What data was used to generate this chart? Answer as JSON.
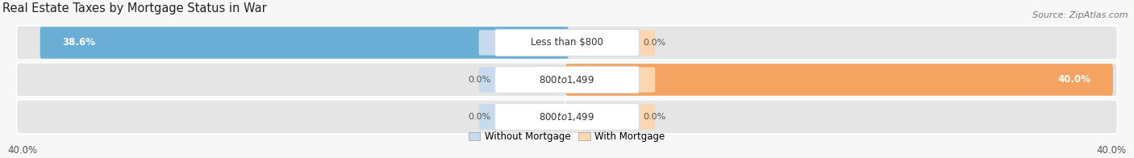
{
  "title": "Real Estate Taxes by Mortgage Status in War",
  "source": "Source: ZipAtlas.com",
  "rows": [
    {
      "label": "Less than $800",
      "without_mortgage": 38.6,
      "with_mortgage": 0.0
    },
    {
      "label": "$800 to $1,499",
      "without_mortgage": 0.0,
      "with_mortgage": 40.0
    },
    {
      "label": "$800 to $1,499",
      "without_mortgage": 0.0,
      "with_mortgage": 0.0
    }
  ],
  "max_value": 40.0,
  "color_without": "#6aaed6",
  "color_with": "#f4a460",
  "color_without_bg": "#c6dcee",
  "color_with_bg": "#fad7b0",
  "bar_bg_color": "#e5e5e5",
  "bg_color": "#f7f7f7",
  "title_fontsize": 10.5,
  "label_fontsize": 8.5,
  "tick_fontsize": 8.5,
  "legend_fontsize": 8.5,
  "source_fontsize": 8.0
}
